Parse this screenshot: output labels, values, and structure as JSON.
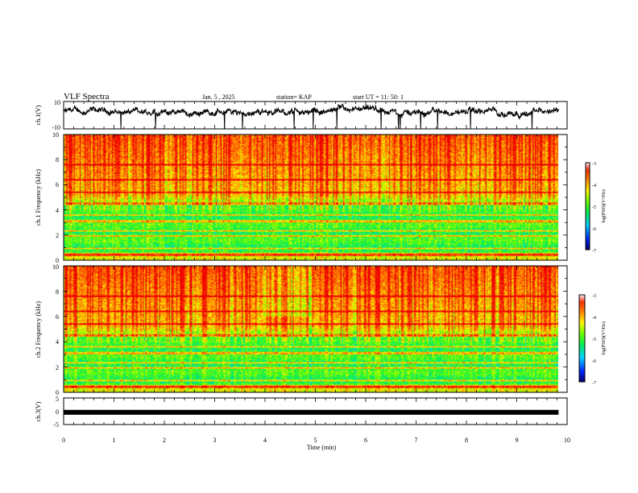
{
  "header": {
    "title": "VLF Spectra",
    "date": "Jan. 5 , 2025",
    "station": "station= KAP",
    "start": "start UT = 11: 50: 1"
  },
  "colors": {
    "background": "#ffffff",
    "axis": "#000000",
    "trace": "#000000"
  },
  "chart_data": [
    {
      "type": "line",
      "panel": "ch1-waveform",
      "ylabel": "ch.1(V)",
      "ylim": [
        -10,
        10
      ],
      "yticks": [
        "10",
        "-10"
      ],
      "xlim": [
        0,
        10
      ],
      "x_end": 9.83,
      "approx_level": 2.5,
      "approx_spread": 3.0
    },
    {
      "type": "heatmap",
      "panel": "ch1-spectrogram",
      "ylabel": "ch.1 Frequency (kHz)",
      "ylim": [
        0,
        10
      ],
      "yticks": [
        "0",
        "2",
        "4",
        "6",
        "8",
        "10"
      ],
      "xlim": [
        0,
        10
      ],
      "x_end": 9.83,
      "colorbar": {
        "label": "log(PSD)(V²/Hz)",
        "range": [
          -7,
          -3
        ],
        "ticks": [
          "-3",
          "-4",
          "-5",
          "-6",
          "-7"
        ]
      }
    },
    {
      "type": "heatmap",
      "panel": "ch2-spectrogram",
      "ylabel": "ch.2 Frequency (kHz)",
      "ylim": [
        0,
        10
      ],
      "yticks": [
        "0",
        "2",
        "4",
        "6",
        "8",
        "10"
      ],
      "xlim": [
        0,
        10
      ],
      "x_end": 9.83,
      "colorbar": {
        "label": "log(PSD)(V²/Hz)",
        "range": [
          -7,
          -3
        ],
        "ticks": [
          "-3",
          "-4",
          "-5",
          "-6",
          "-7"
        ]
      }
    },
    {
      "type": "line",
      "panel": "ch3-waveform",
      "ylabel": "ch.3(V)",
      "ylim": [
        -5,
        5
      ],
      "yticks": [
        "5",
        "0",
        "-5"
      ],
      "xlim": [
        0,
        10
      ],
      "x_end": 9.83,
      "approx_level": -0.4
    }
  ],
  "xaxis": {
    "label": "Time (min)",
    "ticks": [
      "0",
      "1",
      "2",
      "3",
      "4",
      "5",
      "6",
      "7",
      "8",
      "9",
      "10"
    ]
  }
}
